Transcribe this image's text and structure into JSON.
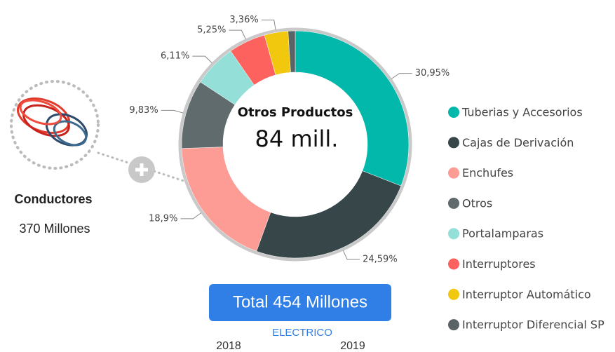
{
  "chart_data": {
    "type": "pie",
    "donut": true,
    "categories": [
      "Tuberias y Accesorios",
      "Cajas de Derivación",
      "Enchufes",
      "Otros",
      "Portalamparas",
      "Interruptores",
      "Interruptor Automático",
      "Interruptor Diferencial SP"
    ],
    "values": [
      30.95,
      24.59,
      18.9,
      9.83,
      6.11,
      5.25,
      3.36,
      1.01
    ],
    "value_labels": [
      "30,95%",
      "24,59%",
      "18,9%",
      "9,83%",
      "6,11%",
      "5,25%",
      "3,36%",
      null
    ],
    "colors": [
      "#01b8aa",
      "#374649",
      "#fd9b95",
      "#5f6b6d",
      "#94e0d9",
      "#fd625e",
      "#f2c80f",
      "#5a6466"
    ],
    "center_title": "Otros Productos",
    "center_value": "84 mill."
  },
  "selected": {
    "title": "Conductores",
    "value": "370 Millones"
  },
  "total_button": "Total 454 Millones",
  "category_label": "ELECTRICO",
  "years": [
    "2018",
    "2019"
  ]
}
